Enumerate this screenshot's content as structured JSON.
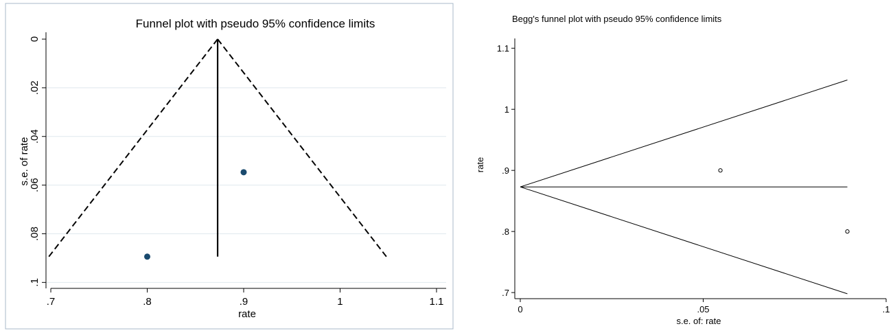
{
  "chart_data": [
    {
      "type": "scatter",
      "title": "Funnel plot with pseudo 95% confidence limits",
      "xlabel": "rate",
      "ylabel": "s.e. of rate",
      "xlim": [
        0.695,
        1.11
      ],
      "ylim": [
        0,
        0.1016
      ],
      "y_reversed": true,
      "grid": true,
      "x_ticks": [
        ".7",
        ".8",
        ".9",
        "1",
        "1.1"
      ],
      "x_tick_values": [
        0.7,
        0.8,
        0.9,
        1.0,
        1.1
      ],
      "y_ticks": [
        "0",
        ".02",
        ".04",
        ".06",
        ".08",
        ".1"
      ],
      "y_tick_values": [
        0,
        0.02,
        0.04,
        0.06,
        0.08,
        0.1
      ],
      "points": [
        {
          "x": 0.9,
          "y": 0.0547
        },
        {
          "x": 0.8,
          "y": 0.0894
        }
      ],
      "pooled_estimate": 0.873,
      "pseudo_ci_lines": [
        {
          "x": [
            0.873,
            0.698
          ],
          "y": [
            0,
            0.0894
          ]
        },
        {
          "x": [
            0.873,
            1.048
          ],
          "y": [
            0,
            0.0894
          ]
        }
      ],
      "vertical_line": {
        "x": 0.873,
        "y": [
          0,
          0.0894
        ]
      },
      "colors": {
        "points": "#1a4a6e",
        "grid": "#dfe8ee",
        "lines": "#000000",
        "frame": "#a8b8c8"
      }
    },
    {
      "type": "scatter",
      "title": "Begg's funnel plot with pseudo 95% confidence limits",
      "xlabel": "s.e. of: rate",
      "ylabel": "rate",
      "xlim": [
        -0.0015,
        0.1
      ],
      "ylim": [
        0.69,
        1.125
      ],
      "grid": false,
      "x_ticks": [
        "0",
        ".05",
        ".1"
      ],
      "x_tick_values": [
        0,
        0.05,
        0.1
      ],
      "y_ticks": [
        ".7",
        ".8",
        ".9",
        "1",
        "1.1"
      ],
      "y_tick_values": [
        0.7,
        0.8,
        0.9,
        1.0,
        1.1
      ],
      "points": [
        {
          "x": 0.0547,
          "y": 0.9
        },
        {
          "x": 0.0894,
          "y": 0.8
        }
      ],
      "pooled_estimate": 0.873,
      "pseudo_ci_lines": [
        {
          "x": [
            0,
            0.0894
          ],
          "y": [
            0.873,
            1.048
          ]
        },
        {
          "x": [
            0,
            0.0894
          ],
          "y": [
            0.873,
            0.698
          ]
        }
      ],
      "horizontal_line": {
        "y": 0.873,
        "x": [
          0,
          0.0894
        ]
      },
      "colors": {
        "points": "#000000",
        "lines": "#000000"
      }
    }
  ]
}
